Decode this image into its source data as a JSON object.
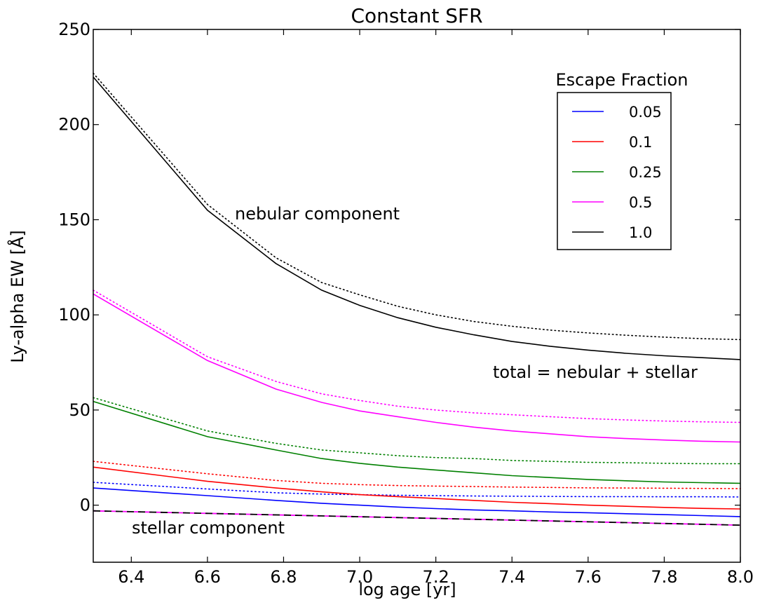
{
  "chart_data": {
    "type": "line",
    "title": "Constant SFR",
    "xlabel": "log age [yr]",
    "ylabel": "Ly-alpha EW [Å]",
    "xlim": [
      6.3,
      8.0
    ],
    "ylim": [
      -30,
      250
    ],
    "xticks": [
      "6.4",
      "6.6",
      "6.8",
      "7.0",
      "7.2",
      "7.4",
      "7.6",
      "7.8",
      "8.0"
    ],
    "yticks": [
      "0",
      "50",
      "100",
      "150",
      "200",
      "250"
    ],
    "grid": false,
    "legend": {
      "title": "Escape Fraction",
      "position": "top-right"
    },
    "x": [
      6.3,
      6.6,
      6.78,
      6.9,
      7.0,
      7.1,
      7.2,
      7.3,
      7.4,
      7.5,
      7.6,
      7.7,
      7.8,
      7.9,
      8.0
    ],
    "series": [
      {
        "name": "0.05",
        "color": "#0000ff",
        "total": [
          9,
          5,
          2.5,
          1,
          0,
          -1,
          -1.8,
          -2.5,
          -3,
          -3.6,
          -4,
          -4.5,
          -5,
          -5.5,
          -6
        ],
        "nebular": [
          12,
          8.5,
          6.5,
          5.8,
          5.5,
          5.2,
          5,
          4.8,
          4.7,
          4.6,
          4.5,
          4.5,
          4.4,
          4.4,
          4.3
        ]
      },
      {
        "name": "0.1",
        "color": "#ff0000",
        "total": [
          20,
          12.5,
          9,
          7,
          5.5,
          4.5,
          3.5,
          2.5,
          1.5,
          0.8,
          0,
          -0.6,
          -1.2,
          -1.7,
          -2
        ],
        "nebular": [
          23,
          16.5,
          13,
          11.5,
          10.8,
          10.3,
          10,
          9.8,
          9.5,
          9.3,
          9.1,
          9,
          8.9,
          8.8,
          8.7
        ]
      },
      {
        "name": "0.25",
        "color": "#008000",
        "total": [
          54.5,
          36,
          29,
          24.5,
          22,
          20,
          18.5,
          17,
          15.5,
          14.5,
          13.5,
          12.8,
          12.2,
          11.8,
          11.5
        ],
        "nebular": [
          56.5,
          39,
          32.5,
          29,
          27.5,
          26,
          25,
          24.5,
          23.5,
          23,
          22.5,
          22.3,
          22,
          21.8,
          21.8
        ]
      },
      {
        "name": "0.5",
        "color": "#ff00ff",
        "total": [
          111,
          76,
          61,
          54,
          49.5,
          46.5,
          43.5,
          41,
          39,
          37.5,
          36,
          35,
          34.2,
          33.6,
          33.2
        ],
        "nebular": [
          113,
          78,
          65,
          58.5,
          55,
          52,
          50,
          48.5,
          47.5,
          46.5,
          45.5,
          44.8,
          44.2,
          43.8,
          43.5
        ]
      },
      {
        "name": "1.0",
        "color": "#000000",
        "total": [
          225,
          155,
          127,
          113,
          105,
          98.5,
          93.5,
          89.5,
          86,
          83.5,
          81.5,
          79.8,
          78.5,
          77.5,
          76.5
        ],
        "nebular": [
          227,
          158,
          130,
          117,
          110.5,
          104.5,
          100,
          96.5,
          94,
          92,
          90.5,
          89.3,
          88.3,
          87.5,
          87
        ]
      }
    ],
    "stellar": {
      "x": [
        6.3,
        8.0
      ],
      "y": [
        -3,
        -10.5
      ],
      "colors": [
        "#000000",
        "#ff00ff"
      ]
    },
    "annotations": {
      "nebular": "nebular component",
      "total": "total = nebular + stellar",
      "stellar": "stellar component"
    }
  }
}
